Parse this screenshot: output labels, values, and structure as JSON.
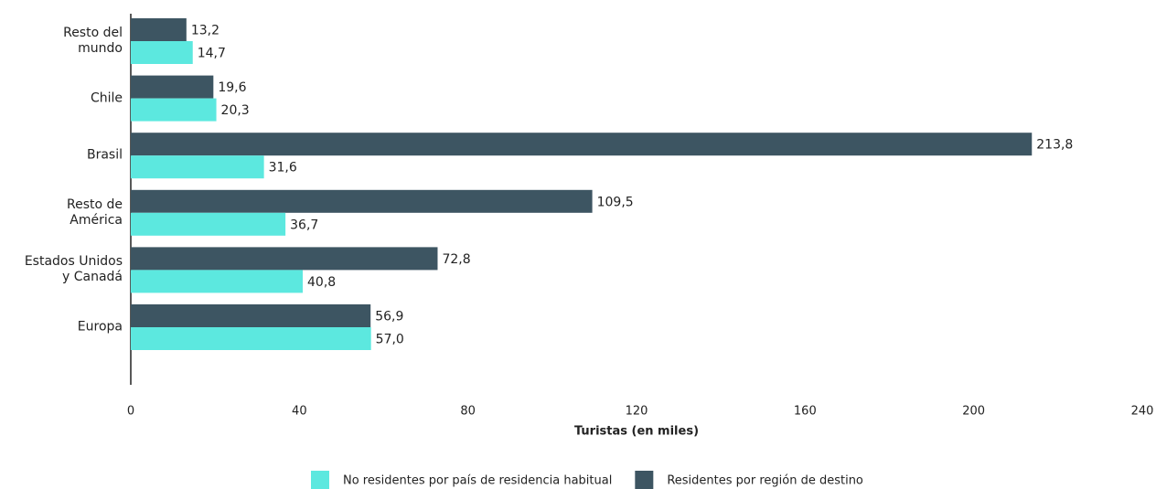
{
  "chart_data": {
    "type": "hbar",
    "categories": [
      "Resto del\nmundo",
      "Chile",
      "Brasil",
      "Resto de\nAmérica",
      "Estados Unidos\ny Canadá",
      "Europa"
    ],
    "series": [
      {
        "name": "No residentes por país de residencia habitual",
        "color": "#5ce8df",
        "values": [
          14.7,
          20.3,
          31.6,
          36.7,
          40.8,
          57.0
        ],
        "value_labels": [
          "14,7",
          "20,3",
          "31,6",
          "36,7",
          "40,8",
          "57,0"
        ]
      },
      {
        "name": "Residentes por región de destino",
        "color": "#3d5562",
        "values": [
          13.2,
          19.6,
          213.8,
          109.5,
          72.8,
          56.9
        ],
        "value_labels": [
          "13,2",
          "19,6",
          "213,8",
          "109,5",
          "72,8",
          "56,9"
        ]
      }
    ],
    "x_label": "Turistas (en miles)",
    "xlim": [
      0,
      240
    ],
    "xticks": [
      0,
      40,
      80,
      120,
      160,
      200,
      240
    ],
    "grid": false
  }
}
